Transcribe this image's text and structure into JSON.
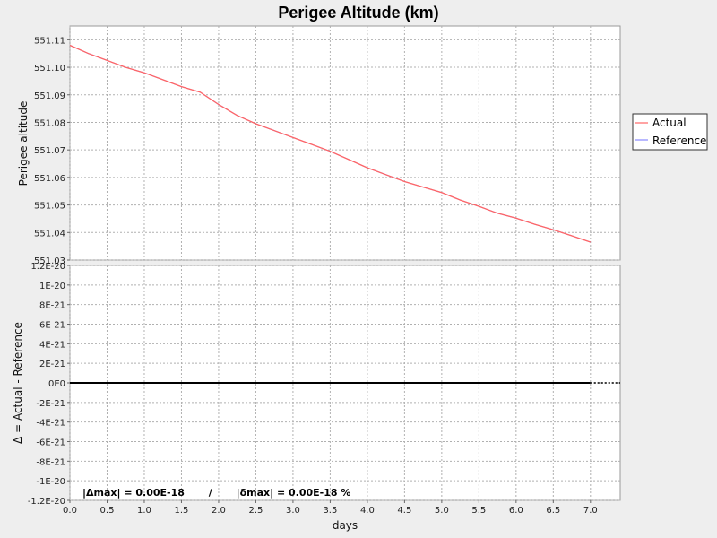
{
  "chart_data": [
    {
      "type": "line",
      "title": "Perigee Altitude (km)",
      "ylabel": "Perigee altitude",
      "xlabel": "",
      "xlim": [
        0,
        7.4
      ],
      "ylim": [
        551.03,
        551.115
      ],
      "grid": true,
      "legend_position": "right",
      "x_ticks": [
        "0.0",
        "0.5",
        "1.0",
        "1.5",
        "2.0",
        "2.5",
        "3.0",
        "3.5",
        "4.0",
        "4.5",
        "5.0",
        "5.5",
        "6.0",
        "6.5",
        "7.0"
      ],
      "y_ticks": [
        "551.03",
        "551.04",
        "551.05",
        "551.06",
        "551.07",
        "551.08",
        "551.09",
        "551.10",
        "551.11"
      ],
      "series": [
        {
          "name": "Actual",
          "color": "#ff6666",
          "x": [
            0.0,
            0.25,
            0.5,
            0.75,
            1.0,
            1.25,
            1.5,
            1.75,
            2.0,
            2.25,
            2.5,
            2.75,
            3.0,
            3.25,
            3.5,
            3.75,
            4.0,
            4.25,
            4.5,
            4.75,
            5.0,
            5.25,
            5.5,
            5.75,
            6.0,
            6.25,
            6.5,
            6.75,
            7.0
          ],
          "y": [
            551.108,
            551.105,
            551.1025,
            551.1,
            551.098,
            551.0955,
            551.093,
            551.091,
            551.0865,
            551.0825,
            551.0795,
            551.077,
            551.0745,
            551.072,
            551.0695,
            551.0665,
            551.0635,
            551.061,
            551.0585,
            551.0565,
            551.0545,
            551.0518,
            551.0495,
            551.047,
            551.0452,
            551.043,
            551.041,
            551.0388,
            551.0365
          ]
        },
        {
          "name": "Reference",
          "color": "#8888ff",
          "x": [
            0.0,
            0.25,
            0.5,
            0.75,
            1.0,
            1.25,
            1.5,
            1.75,
            2.0,
            2.25,
            2.5,
            2.75,
            3.0,
            3.25,
            3.5,
            3.75,
            4.0,
            4.25,
            4.5,
            4.75,
            5.0,
            5.25,
            5.5,
            5.75,
            6.0,
            6.25,
            6.5,
            6.75,
            7.0
          ],
          "y": [
            551.108,
            551.105,
            551.1025,
            551.1,
            551.098,
            551.0955,
            551.093,
            551.091,
            551.0865,
            551.0825,
            551.0795,
            551.077,
            551.0745,
            551.072,
            551.0695,
            551.0665,
            551.0635,
            551.061,
            551.0585,
            551.0565,
            551.0545,
            551.0518,
            551.0495,
            551.047,
            551.0452,
            551.043,
            551.041,
            551.0388,
            551.0365
          ]
        }
      ]
    },
    {
      "type": "line",
      "title": "",
      "ylabel": "Δ = Actual - Reference",
      "xlabel": "days",
      "xlim": [
        0,
        7.4
      ],
      "ylim": [
        -1.2e-20,
        1.2e-20
      ],
      "grid": true,
      "x_ticks": [
        "0.0",
        "0.5",
        "1.0",
        "1.5",
        "2.0",
        "2.5",
        "3.0",
        "3.5",
        "4.0",
        "4.5",
        "5.0",
        "5.5",
        "6.0",
        "6.5",
        "7.0"
      ],
      "y_ticks": [
        "-1.2E-20",
        "-1E-20",
        "-8E-21",
        "-6E-21",
        "-4E-21",
        "-2E-21",
        "0E0",
        "2E-21",
        "4E-21",
        "6E-21",
        "8E-21",
        "1E-20",
        "1.2E-20"
      ],
      "series": [
        {
          "name": "",
          "color": "#000000",
          "x": [
            0.0,
            7.0
          ],
          "y": [
            0,
            0
          ]
        }
      ],
      "annotation": "|Δmax| = 0.00E-18       /       |δmax| = 0.00E-18 %"
    }
  ]
}
